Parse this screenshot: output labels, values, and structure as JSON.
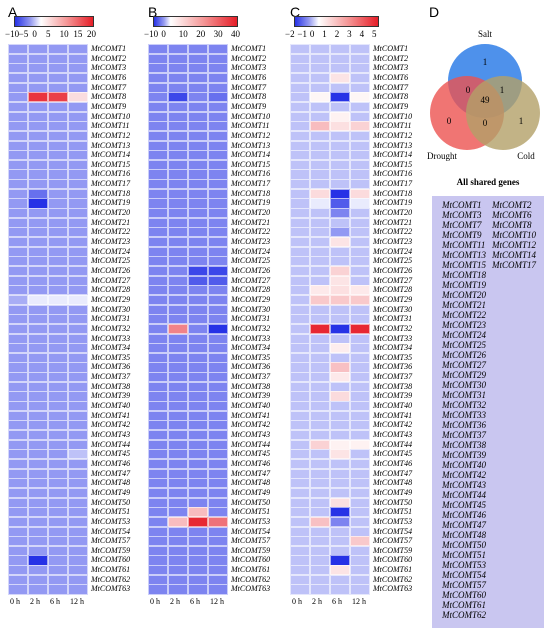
{
  "genes": [
    "MtCOMT1",
    "MtCOMT2",
    "MtCOMT3",
    "MtCOMT6",
    "MtCOMT7",
    "MtCOMT8",
    "MtCOMT9",
    "MtCOMT10",
    "MtCOMT11",
    "MtCOMT12",
    "MtCOMT13",
    "MtCOMT14",
    "MtCOMT15",
    "MtCOMT16",
    "MtCOMT17",
    "MtCOMT18",
    "MtCOMT19",
    "MtCOMT20",
    "MtCOMT21",
    "MtCOMT22",
    "MtCOMT23",
    "MtCOMT24",
    "MtCOMT25",
    "MtCOMT26",
    "MtCOMT27",
    "MtCOMT28",
    "MtCOMT29",
    "MtCOMT30",
    "MtCOMT31",
    "MtCOMT32",
    "MtCOMT33",
    "MtCOMT34",
    "MtCOMT35",
    "MtCOMT36",
    "MtCOMT37",
    "MtCOMT38",
    "MtCOMT39",
    "MtCOMT40",
    "MtCOMT41",
    "MtCOMT42",
    "MtCOMT43",
    "MtCOMT44",
    "MtCOMT45",
    "MtCOMT46",
    "MtCOMT47",
    "MtCOMT48",
    "MtCOMT49",
    "MtCOMT50",
    "MtCOMT51",
    "MtCOMT53",
    "MtCOMT54",
    "MtCOMT57",
    "MtCOMT59",
    "MtCOMT60",
    "MtCOMT61",
    "MtCOMT62",
    "MtCOMT63"
  ],
  "chart_data": [
    {
      "type": "heatmap",
      "panel": "A",
      "x": [
        "0 h",
        "2 h",
        "6 h",
        "12 h"
      ],
      "colorbar_ticks": [
        "−10",
        "−5",
        "0",
        "5",
        "10",
        "15",
        "20"
      ],
      "vmin": -10,
      "vmax": 20,
      "default_value": -5,
      "values": {
        "MtCOMT8": [
          -5,
          18,
          17,
          3
        ],
        "MtCOMT18": [
          -5,
          -7,
          -5,
          -5
        ],
        "MtCOMT19": [
          -5,
          -10,
          -5,
          -5
        ],
        "MtCOMT29": [
          -4,
          -1,
          -1,
          -1
        ],
        "MtCOMT45": [
          -5,
          -5,
          -5,
          -3
        ],
        "MtCOMT60": [
          -5,
          -10,
          -5,
          -5
        ]
      }
    },
    {
      "type": "heatmap",
      "panel": "B",
      "x": [
        "0 h",
        "2 h",
        "6 h",
        "12 h"
      ],
      "colorbar_ticks": [
        "−10",
        "0",
        "10",
        "20",
        "30",
        "40"
      ],
      "vmin": -10,
      "vmax": 40,
      "default_value": -6,
      "values": {
        "MtCOMT8": [
          -6,
          -9,
          -6,
          -7
        ],
        "MtCOMT26": [
          -6,
          -6,
          -9,
          -9
        ],
        "MtCOMT27": [
          -6,
          -6,
          -8,
          -8
        ],
        "MtCOMT32": [
          -6,
          22,
          -6,
          -10
        ],
        "MtCOMT51": [
          -6,
          -6,
          12,
          -6
        ],
        "MtCOMT53": [
          -6,
          12,
          38,
          25
        ]
      }
    },
    {
      "type": "heatmap",
      "panel": "C",
      "x": [
        "0 h",
        "2 h",
        "6 h",
        "12 h"
      ],
      "colorbar_ticks": [
        "−2",
        "−1",
        "0",
        "1",
        "2",
        "3",
        "4",
        "5"
      ],
      "vmin": -2,
      "vmax": 5,
      "default_value": -0.6,
      "values": {
        "MtCOMT6": [
          -0.6,
          -0.6,
          0.6,
          -0.6
        ],
        "MtCOMT8": [
          -0.6,
          0.2,
          -2,
          0.2
        ],
        "MtCOMT10": [
          -0.6,
          -0.6,
          0.3,
          -0.6
        ],
        "MtCOMT11": [
          -0.6,
          1.5,
          0.7,
          1.0
        ],
        "MtCOMT18": [
          -0.6,
          0.8,
          -2,
          0.8
        ],
        "MtCOMT19": [
          -0.6,
          -0.2,
          -1.6,
          -0.2
        ],
        "MtCOMT20": [
          -0.6,
          -0.6,
          -1.2,
          -0.6
        ],
        "MtCOMT22": [
          -0.6,
          -0.6,
          -1.0,
          -0.6
        ],
        "MtCOMT23": [
          -0.6,
          -0.6,
          0.6,
          -0.6
        ],
        "MtCOMT26": [
          -0.6,
          -0.6,
          1.0,
          -0.6
        ],
        "MtCOMT27": [
          -0.6,
          -0.6,
          0.6,
          -0.6
        ],
        "MtCOMT28": [
          -0.6,
          0.5,
          0.7,
          0.5
        ],
        "MtCOMT29": [
          -0.6,
          1.2,
          1.2,
          1.2
        ],
        "MtCOMT32": [
          -0.6,
          4.8,
          -2,
          4.8
        ],
        "MtCOMT34": [
          -0.6,
          -0.6,
          0.4,
          -0.6
        ],
        "MtCOMT36": [
          -0.6,
          -0.6,
          1.4,
          -0.6
        ],
        "MtCOMT37": [
          -0.6,
          -0.6,
          0.5,
          -0.6
        ],
        "MtCOMT39": [
          -0.6,
          -0.6,
          0.8,
          -0.6
        ],
        "MtCOMT44": [
          -0.6,
          1.0,
          0.3,
          0.3
        ],
        "MtCOMT45": [
          -0.6,
          -0.6,
          0.6,
          -0.6
        ],
        "MtCOMT50": [
          -0.6,
          -0.6,
          0.7,
          -0.6
        ],
        "MtCOMT51": [
          -0.6,
          -0.6,
          -2,
          -0.6
        ],
        "MtCOMT53": [
          -0.6,
          1.4,
          -1.2,
          -0.6
        ],
        "MtCOMT57": [
          -0.6,
          -0.6,
          -0.6,
          1.2
        ],
        "MtCOMT60": [
          -0.6,
          -0.6,
          -2,
          -0.6
        ],
        "MtCOMT61": [
          -0.6,
          -0.6,
          0.6,
          -0.6
        ]
      }
    },
    {
      "type": "venn",
      "panel": "D",
      "sets": [
        {
          "name": "Salt",
          "color": "#2f7ee8"
        },
        {
          "name": "Drought",
          "color": "#ec5250"
        },
        {
          "name": "Cold",
          "color": "#b3a068"
        }
      ],
      "counts": {
        "salt_only": "1",
        "drought_only": "0",
        "cold_only": "1",
        "salt_drought": "0",
        "salt_cold": "1",
        "drought_cold": "0",
        "all": "49"
      }
    }
  ],
  "shared": {
    "title": "All shared genes",
    "left": [
      "MtCOMT1",
      "MtCOMT3",
      "MtCOMT7",
      "MtCOMT9",
      "MtCOMT11",
      "MtCOMT13",
      "MtCOMT15",
      "MtCOMT18",
      "MtCOMT19",
      "MtCOMT20",
      "MtCOMT21",
      "MtCOMT22",
      "MtCOMT23",
      "MtCOMT24",
      "MtCOMT25",
      "MtCOMT26",
      "MtCOMT27",
      "MtCOMT29",
      "MtCOMT30",
      "MtCOMT31",
      "MtCOMT32",
      "MtCOMT33",
      "MtCOMT36",
      "MtCOMT37",
      "MtCOMT38",
      "MtCOMT39",
      "MtCOMT40",
      "MtCOMT42",
      "MtCOMT43",
      "MtCOMT44",
      "MtCOMT45",
      "MtCOMT46",
      "MtCOMT47",
      "MtCOMT48",
      "MtCOMT50",
      "MtCOMT51",
      "MtCOMT53",
      "MtCOMT54",
      "MtCOMT57",
      "MtCOMT60",
      "MtCOMT61",
      "MtCOMT62"
    ],
    "right": [
      "MtCOMT2",
      "MtCOMT6",
      "MtCOMT8",
      "MtCOMT10",
      "MtCOMT12",
      "MtCOMT14",
      "MtCOMT17"
    ]
  }
}
